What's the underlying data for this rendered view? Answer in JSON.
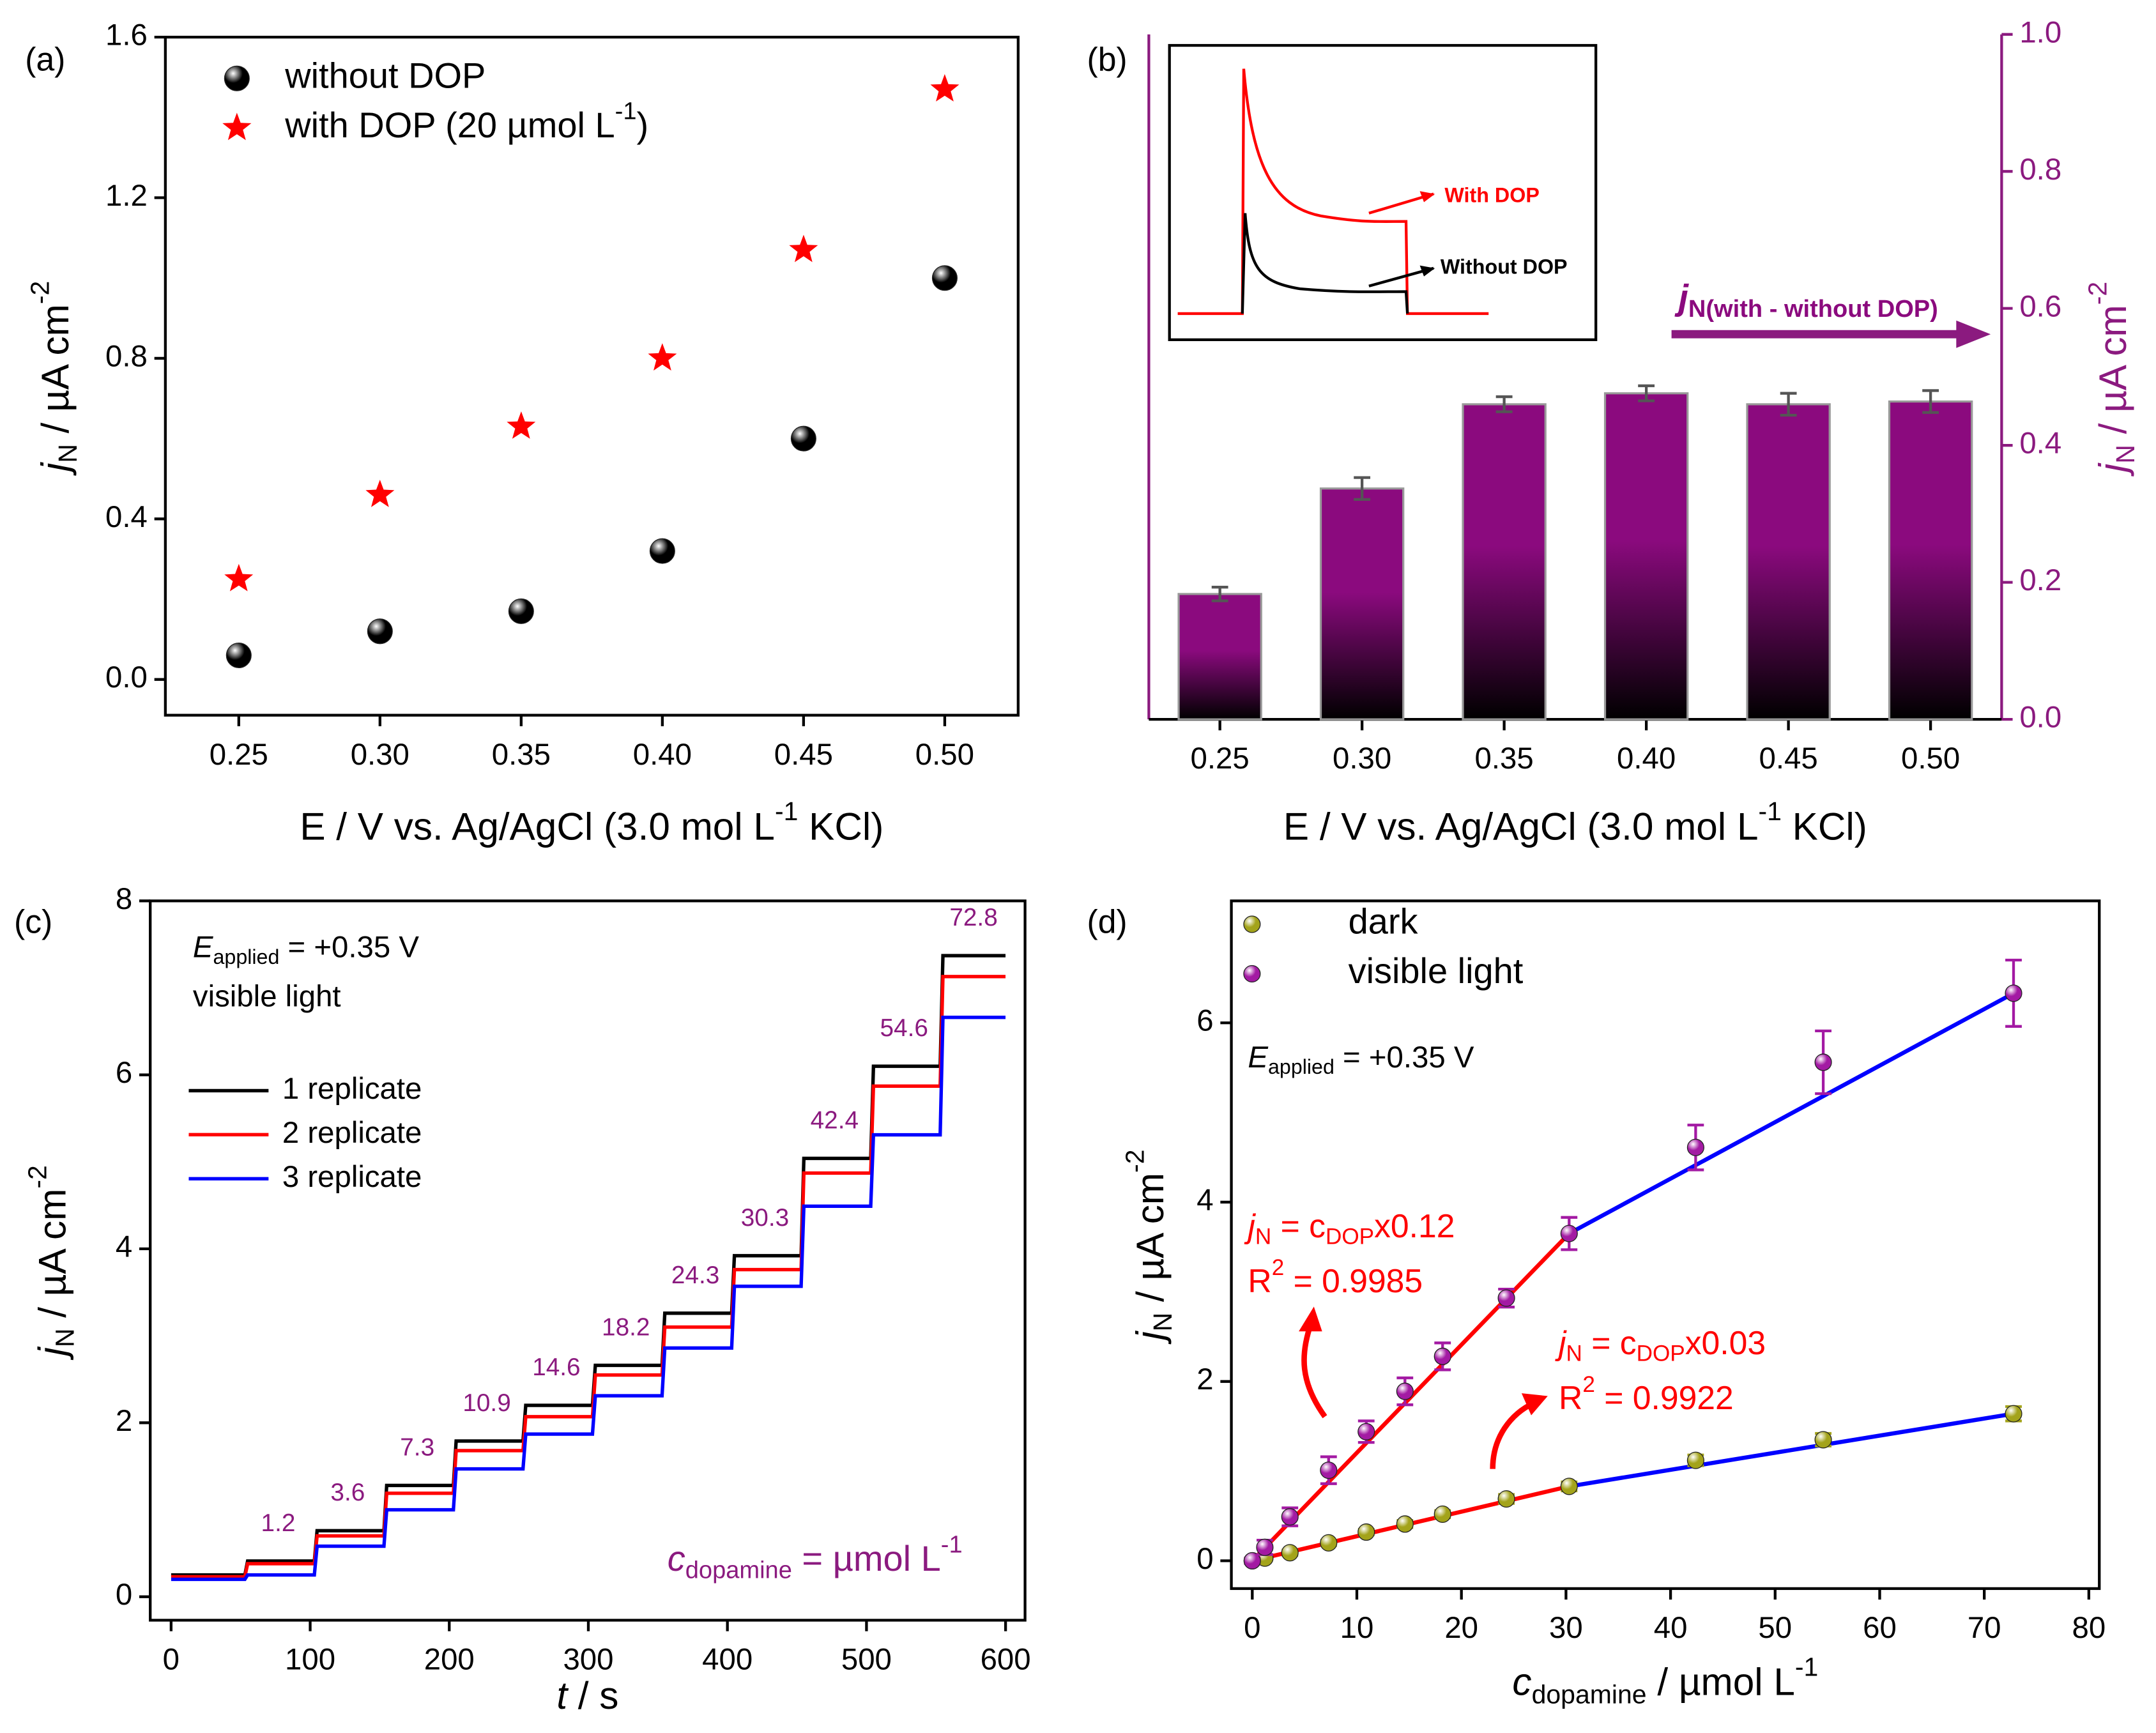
{
  "chart_data": [
    {
      "type": "scatter",
      "panel_label": "(a)",
      "x": [
        0.25,
        0.3,
        0.35,
        0.4,
        0.45,
        0.5
      ],
      "xlim": [
        0.224,
        0.526
      ],
      "xticks": [
        0.25,
        {
          "value": 0.3,
          "label": "0.30"
        },
        0.35,
        {
          "value": 0.4,
          "label": "0.40"
        },
        0.45,
        {
          "value": 0.5,
          "label": "0.50"
        }
      ],
      "ylim": [
        -0.089,
        1.6
      ],
      "yticks": [
        {
          "value": 0,
          "label": "0.0"
        },
        0.4,
        0.8,
        1.2,
        1.6
      ],
      "xlabel": [
        "E / V vs. Ag/AgCl (3.0 mol L",
        {
          "text": "-1",
          "style": "sup"
        },
        " KCl)"
      ],
      "ylabel": [
        {
          "text": "j",
          "style": "italic"
        },
        {
          "text": "N",
          "style": "sub"
        },
        " / µA cm",
        {
          "text": "-2",
          "style": "sup"
        }
      ],
      "legend": "upper left",
      "series": [
        {
          "name": "without DOP",
          "color": "#000000",
          "marker": "ball",
          "values": [
            0.06,
            0.12,
            0.17,
            0.32,
            0.6,
            1.0
          ]
        },
        {
          "name": [
            "with DOP (20 µmol L",
            {
              "text": "-1",
              "style": "sup"
            },
            ")"
          ],
          "color": "#ff0000",
          "marker": "star",
          "values": [
            0.25,
            0.46,
            0.63,
            0.8,
            1.07,
            1.47
          ]
        }
      ]
    },
    {
      "type": "bar",
      "panel_label": "(b)",
      "categories": [
        "0.25",
        "0.30",
        "0.35",
        "0.40",
        "0.45",
        "0.50"
      ],
      "xlabel": [
        "E / V vs. Ag/AgCl (3.0 mol L",
        {
          "text": "-1",
          "style": "sup"
        },
        " KCl)"
      ],
      "y2label": [
        {
          "text": "j",
          "style": "italic"
        },
        {
          "text": "N",
          "style": "sub"
        },
        " / µA cm",
        {
          "text": "-2",
          "style": "sup"
        }
      ],
      "y2lim": [
        0,
        1
      ],
      "y2ticks": [
        {
          "value": 0,
          "label": "0.0"
        },
        0.2,
        0.4,
        0.6,
        0.8,
        {
          "value": 1,
          "label": "1.0"
        }
      ],
      "axis_color": "#8b1a7f",
      "series": [
        {
          "name": [
            {
              "text": "j",
              "style": "italic"
            },
            {
              "text": "N(with - without DOP)",
              "style": "sub"
            }
          ],
          "color": "#8b0a7e",
          "axis": "y2",
          "values": [
            0.183,
            0.337,
            0.46,
            0.476,
            0.46,
            0.464
          ],
          "errors": [
            0.01,
            0.016,
            0.011,
            0.011,
            0.016,
            0.016
          ]
        }
      ],
      "inset": {
        "labels": [
          "With DOP",
          "Without DOP"
        ],
        "colors": [
          "#ff0000",
          "#000000"
        ]
      }
    },
    {
      "type": "line",
      "panel_label": "(c)",
      "x": [
        0,
        53,
        55,
        103,
        105,
        153,
        155,
        203,
        205,
        253,
        255,
        303,
        305,
        353,
        355,
        403,
        405,
        453,
        455,
        503,
        505,
        553,
        555,
        600
      ],
      "xlim": [
        -15,
        614
      ],
      "xticks": [
        0,
        100,
        200,
        300,
        400,
        500,
        600
      ],
      "ylim": [
        -0.27,
        8
      ],
      "yticks": [
        0,
        2,
        4,
        6,
        8
      ],
      "xlabel": [
        {
          "text": "t",
          "style": "italic"
        },
        " / s"
      ],
      "ylabel": [
        {
          "text": "j",
          "style": "italic"
        },
        {
          "text": "N",
          "style": "sub"
        },
        " / µA cm",
        {
          "text": "-2",
          "style": "sup"
        }
      ],
      "legend": "upper left",
      "series": [
        {
          "name": "1 replicate",
          "color": "#000000",
          "values": [
            0.25,
            0.25,
            0.41,
            0.41,
            0.76,
            0.76,
            1.28,
            1.28,
            1.79,
            1.79,
            2.2,
            2.2,
            2.66,
            2.66,
            3.26,
            3.26,
            3.92,
            3.92,
            5.04,
            5.04,
            6.1,
            6.1,
            7.37,
            7.37
          ]
        },
        {
          "name": "2 replicate",
          "color": "#ff0000",
          "values": [
            0.23,
            0.23,
            0.38,
            0.38,
            0.7,
            0.7,
            1.19,
            1.19,
            1.68,
            1.68,
            2.07,
            2.07,
            2.55,
            2.55,
            3.1,
            3.1,
            3.76,
            3.76,
            4.87,
            4.87,
            5.87,
            5.87,
            7.13,
            7.13
          ]
        },
        {
          "name": "3 replicate",
          "color": "#0000ff",
          "values": [
            0.2,
            0.2,
            0.25,
            0.25,
            0.58,
            0.58,
            1.0,
            1.0,
            1.47,
            1.47,
            1.87,
            1.87,
            2.31,
            2.31,
            2.86,
            2.86,
            3.57,
            3.57,
            4.49,
            4.49,
            5.31,
            5.31,
            6.66,
            6.66
          ]
        }
      ],
      "annotations": [
        "1.2",
        "3.6",
        "7.3",
        "10.9",
        "14.6",
        "18.2",
        "24.3",
        "30.3",
        "42.4",
        "54.6",
        "72.8"
      ],
      "annotation_color": "#8b1a7f",
      "notes": [
        [
          {
            "text": "E",
            "style": "italic"
          },
          {
            "text": "applied",
            "style": "sub"
          },
          " = +0.35 V"
        ],
        "visible light",
        [
          {
            "text": "c",
            "style": "italic"
          },
          {
            "text": "dopamine",
            "style": "sub"
          },
          " = µmol L",
          {
            "text": "-1",
            "style": "sup"
          }
        ]
      ]
    },
    {
      "type": "scatter",
      "panel_label": "(d)",
      "x": [
        0,
        1.2,
        3.6,
        7.3,
        10.9,
        14.6,
        18.2,
        24.3,
        30.3,
        42.4,
        54.6,
        72.8
      ],
      "xlim": [
        -2,
        81
      ],
      "xticks": [
        0,
        10,
        20,
        30,
        40,
        50,
        60,
        70,
        80
      ],
      "ylim": [
        -0.31,
        7.36
      ],
      "yticks": [
        0,
        2,
        4,
        6
      ],
      "xlabel": [
        {
          "text": "c",
          "style": "italic"
        },
        {
          "text": "dopamine",
          "style": "sub"
        },
        " / µmol L",
        {
          "text": "-1",
          "style": "sup"
        }
      ],
      "ylabel": [
        {
          "text": "j",
          "style": "italic"
        },
        {
          "text": "N",
          "style": "sub"
        },
        " / µA cm",
        {
          "text": "-2",
          "style": "sup"
        }
      ],
      "legend": "upper left",
      "series": [
        {
          "name": "dark",
          "color": "#a3a31a",
          "marker": "ball",
          "values": [
            0,
            0.03,
            0.09,
            0.2,
            0.32,
            0.41,
            0.52,
            0.69,
            0.83,
            1.12,
            1.35,
            1.64
          ],
          "errors": [
            0.02,
            0.02,
            0.03,
            0.03,
            0.03,
            0.04,
            0.04,
            0.05,
            0.05,
            0.06,
            0.07,
            0.08
          ]
        },
        {
          "name": "visible light",
          "color": "#a31aa3",
          "marker": "ball",
          "values": [
            0,
            0.15,
            0.49,
            1.01,
            1.44,
            1.89,
            2.28,
            2.93,
            3.65,
            4.61,
            5.56,
            6.33
          ],
          "errors": [
            0.03,
            0.08,
            0.1,
            0.15,
            0.12,
            0.15,
            0.15,
            0.1,
            0.18,
            0.25,
            0.35,
            0.37
          ]
        }
      ],
      "fit_colors": [
        "#ff0000",
        "#0000ff"
      ],
      "annotation_color": "#ff0000",
      "annotations": [
        [
          {
            "text": "j",
            "style": "italic"
          },
          {
            "text": "N",
            "style": "sub"
          },
          " = c",
          {
            "text": "DOP",
            "style": "sub"
          },
          "x0.12"
        ],
        [
          "R",
          {
            "text": "2",
            "style": "sup"
          },
          " = 0.9985"
        ],
        [
          {
            "text": "j",
            "style": "italic"
          },
          {
            "text": "N",
            "style": "sub"
          },
          " = c",
          {
            "text": "DOP",
            "style": "sub"
          },
          "x0.03"
        ],
        [
          "R",
          {
            "text": "2",
            "style": "sup"
          },
          " = 0.9922"
        ]
      ],
      "notes": [
        [
          {
            "text": "E",
            "style": "italic"
          },
          {
            "text": "applied",
            "style": "sub"
          },
          " = +0.35 V"
        ]
      ]
    }
  ]
}
